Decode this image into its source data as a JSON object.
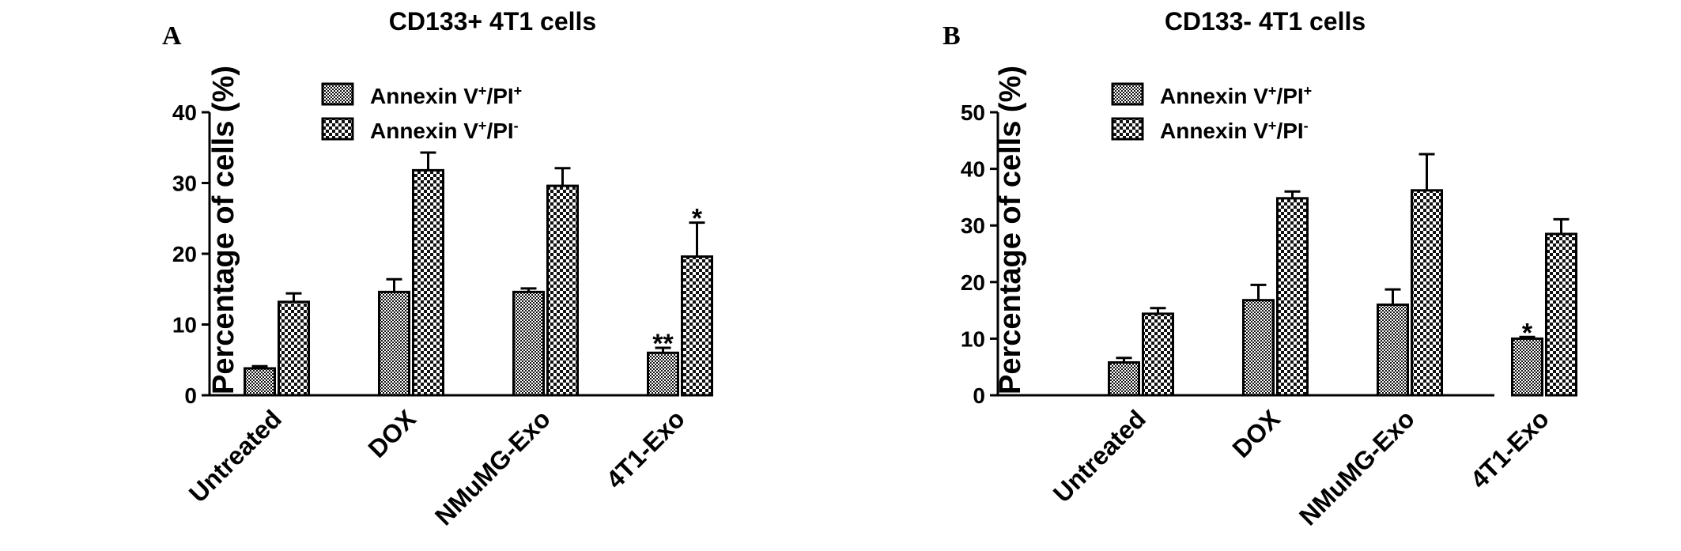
{
  "chart_data": [
    {
      "type": "bar",
      "panel": "A",
      "title": "CD133+ 4T1 cells",
      "xlabel": "",
      "ylabel": "Percentage of cells (%)",
      "ylim": [
        0,
        40
      ],
      "yticks": [
        0,
        10,
        20,
        30,
        40
      ],
      "categories": [
        "Untreated",
        "DOX",
        "NMuMG-Exo",
        "4T1-Exo"
      ],
      "series": [
        {
          "name": "Annexin V+/PI+",
          "name_base": "Annexin V",
          "name_sup1": "+",
          "name_mid": "/PI",
          "name_sup2": "+",
          "pattern": "fine",
          "values": [
            3.8,
            14.6,
            14.6,
            6.0
          ],
          "errors": [
            0.3,
            1.8,
            0.5,
            0.7
          ],
          "annotations": [
            "",
            "",
            "",
            "**"
          ]
        },
        {
          "name": "Annexin V+/PI-",
          "name_base": "Annexin V",
          "name_sup1": "+",
          "name_mid": "/PI",
          "name_sup2": "-",
          "pattern": "coarse",
          "values": [
            13.2,
            31.8,
            29.6,
            19.6
          ],
          "errors": [
            1.2,
            2.5,
            2.5,
            4.8
          ],
          "annotations": [
            "",
            "",
            "",
            "*"
          ]
        }
      ],
      "grid": false,
      "legend": "top-left"
    },
    {
      "type": "bar",
      "panel": "B",
      "title": "CD133- 4T1 cells",
      "xlabel": "",
      "ylabel": "Percentage of cells (%)",
      "ylim": [
        0,
        50
      ],
      "yticks": [
        0,
        10,
        20,
        30,
        40,
        50
      ],
      "categories": [
        "Untreated",
        "DOX",
        "NMuMG-Exo",
        "4T1-Exo"
      ],
      "series": [
        {
          "name": "Annexin V+/PI+",
          "name_base": "Annexin V",
          "name_sup1": "+",
          "name_mid": "/PI",
          "name_sup2": "+",
          "pattern": "fine",
          "values": [
            5.8,
            16.8,
            16.0,
            10.0
          ],
          "errors": [
            0.8,
            2.7,
            2.7,
            0.3
          ],
          "annotations": [
            "",
            "",
            "",
            "*"
          ]
        },
        {
          "name": "Annexin V+/PI-",
          "name_base": "Annexin V",
          "name_sup1": "+",
          "name_mid": "/PI",
          "name_sup2": "-",
          "pattern": "coarse",
          "values": [
            14.4,
            34.8,
            36.2,
            28.5
          ],
          "errors": [
            1.0,
            1.2,
            6.4,
            2.6
          ],
          "annotations": [
            "",
            "",
            "",
            ""
          ]
        }
      ],
      "grid": false,
      "legend": "top-left"
    }
  ]
}
